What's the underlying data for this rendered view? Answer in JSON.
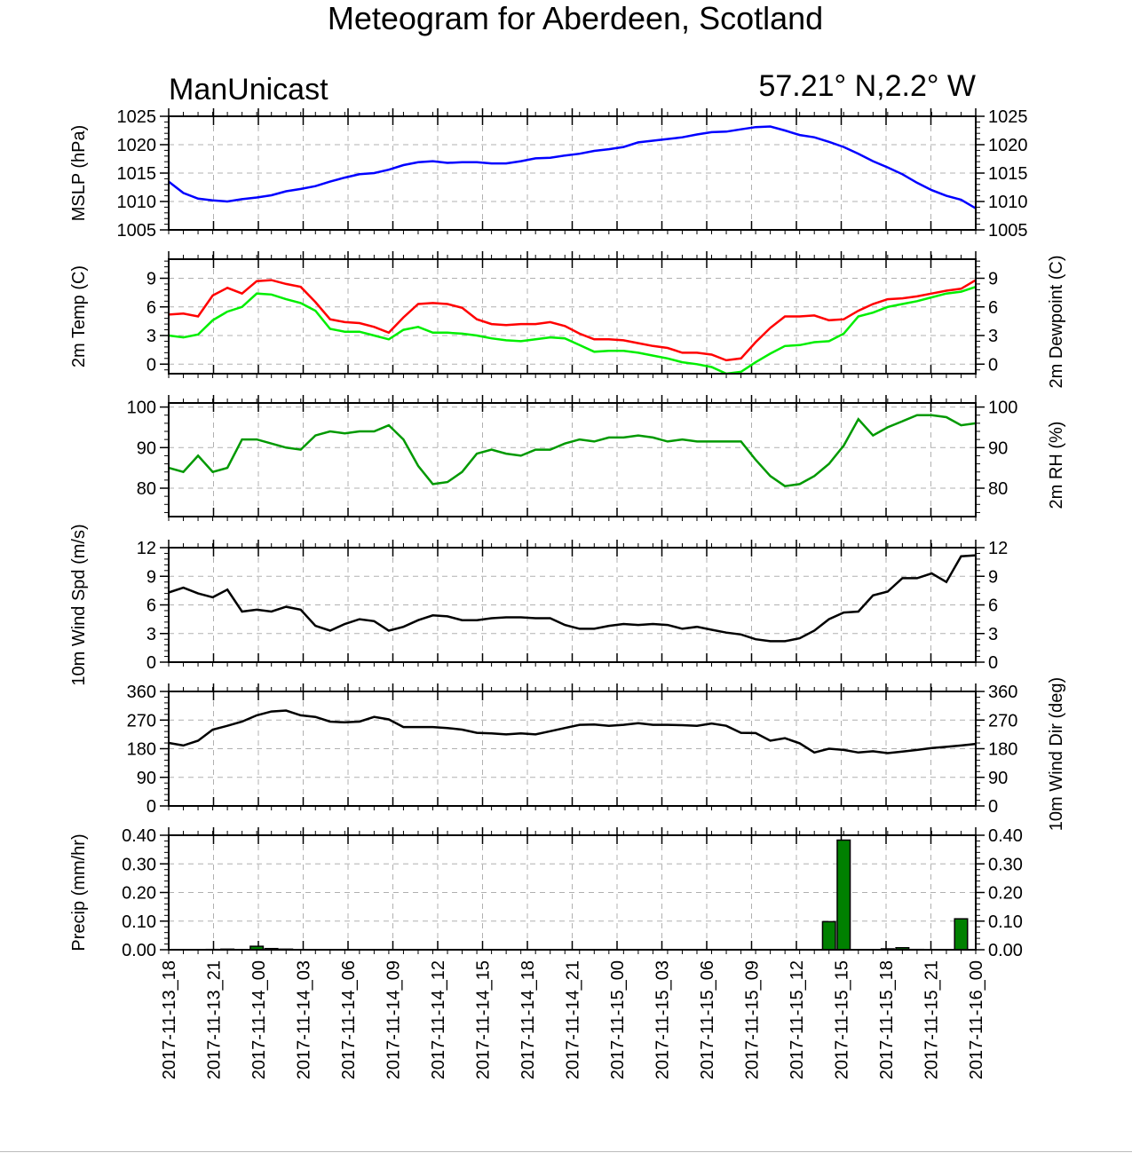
{
  "title": "Meteogram for Aberdeen, Scotland",
  "model": "ManUnicast",
  "location": "57.21° N,2.2° W",
  "x_tick_labels": [
    "2017-11-13_18",
    "2017-11-13_21",
    "2017-11-14_00",
    "2017-11-14_03",
    "2017-11-14_06",
    "2017-11-14_09",
    "2017-11-14_12",
    "2017-11-14_15",
    "2017-11-14_18",
    "2017-11-14_21",
    "2017-11-15_00",
    "2017-11-15_03",
    "2017-11-15_06",
    "2017-11-15_09",
    "2017-11-15_12",
    "2017-11-15_15",
    "2017-11-15_18",
    "2017-11-15_21",
    "2017-11-16_00"
  ],
  "colors": {
    "mslp": "#0000ff",
    "temp": "#ff0000",
    "dewpoint": "#00ee00",
    "rh": "#009900",
    "wind": "#000000",
    "precip": "#008000",
    "grid": "#b0b0b0"
  },
  "chart_data": [
    {
      "type": "line",
      "ylabel_left": "MSLP (hPa)",
      "ylim": [
        1005,
        1025
      ],
      "yticks": [
        "1025",
        "1020",
        "1015",
        "1010",
        "1005"
      ],
      "series": [
        {
          "values": [
            1013.5,
            1011.5,
            1010.5,
            1010.2,
            1010.0,
            1010.4,
            1010.7,
            1011.1,
            1011.8,
            1012.2,
            1012.7,
            1013.5,
            1014.2,
            1014.8,
            1015.0,
            1015.6,
            1016.4,
            1016.9,
            1017.1,
            1016.8,
            1016.9,
            1016.9,
            1016.7,
            1016.7,
            1017.1,
            1017.6,
            1017.7,
            1018.1,
            1018.4,
            1018.9,
            1019.2,
            1019.6,
            1020.4,
            1020.7,
            1021.0,
            1021.3,
            1021.8,
            1022.2,
            1022.3,
            1022.7,
            1023.1,
            1023.2,
            1022.5,
            1021.7,
            1021.3,
            1020.5,
            1019.6,
            1018.4,
            1017.1,
            1016.0,
            1014.8,
            1013.3,
            1012.0,
            1011.0,
            1010.3,
            1008.8
          ]
        }
      ]
    },
    {
      "type": "line",
      "ylabel_left": "2m Temp (C)",
      "ylabel_right": "2m Dewpoint (C)",
      "ylim": [
        -1,
        11
      ],
      "yticks": [
        "9",
        "6",
        "3",
        "0"
      ],
      "series": [
        {
          "values": [
            5.2,
            5.3,
            5.0,
            7.2,
            8.0,
            7.4,
            8.7,
            8.8,
            8.4,
            8.1,
            6.5,
            4.7,
            4.4,
            4.3,
            3.9,
            3.3,
            4.9,
            6.3,
            6.4,
            6.3,
            5.9,
            4.7,
            4.2,
            4.1,
            4.2,
            4.2,
            4.4,
            4.0,
            3.2,
            2.6,
            2.6,
            2.5,
            2.2,
            1.9,
            1.7,
            1.2,
            1.2,
            1.0,
            0.4,
            0.6,
            2.3,
            3.8,
            5.0,
            5.0,
            5.1,
            4.6,
            4.7,
            5.6,
            6.3,
            6.8,
            6.9,
            7.1,
            7.4,
            7.7,
            7.9,
            8.8
          ]
        },
        {
          "values": [
            3.0,
            2.8,
            3.1,
            4.6,
            5.5,
            6.0,
            7.4,
            7.3,
            6.8,
            6.4,
            5.6,
            3.7,
            3.4,
            3.4,
            3.0,
            2.6,
            3.6,
            3.9,
            3.3,
            3.3,
            3.2,
            3.0,
            2.7,
            2.5,
            2.4,
            2.6,
            2.8,
            2.7,
            2.0,
            1.3,
            1.4,
            1.4,
            1.2,
            0.9,
            0.6,
            0.2,
            0.0,
            -0.3,
            -1.0,
            -0.8,
            0.2,
            1.1,
            1.9,
            2.0,
            2.3,
            2.4,
            3.2,
            5.0,
            5.4,
            6.0,
            6.3,
            6.6,
            7.0,
            7.4,
            7.6,
            8.1
          ]
        }
      ]
    },
    {
      "type": "line",
      "ylabel_right": "2m RH (%)",
      "ylim": [
        73,
        101
      ],
      "yticks": [
        "100",
        "90",
        "80"
      ],
      "series": [
        {
          "values": [
            85,
            84,
            88,
            84,
            85,
            92,
            92,
            91,
            90,
            89.5,
            93,
            94,
            93.5,
            94,
            94,
            95.5,
            92,
            85.5,
            81,
            81.5,
            84,
            88.5,
            89.5,
            88.5,
            88,
            89.5,
            89.5,
            91,
            92,
            91.5,
            92.5,
            92.5,
            93,
            92.5,
            91.5,
            92,
            91.5,
            91.5,
            91.5,
            91.5,
            87,
            83,
            80.5,
            81,
            83,
            86,
            90.5,
            97,
            93,
            95,
            96.5,
            98,
            98,
            97.5,
            95.5,
            96
          ]
        }
      ]
    },
    {
      "type": "line",
      "ylabel_left": "10m Wind Spd (m/s)",
      "ylim": [
        0,
        12
      ],
      "yticks": [
        "12",
        "9",
        "6",
        "3",
        "0"
      ],
      "series": [
        {
          "values": [
            7.3,
            7.8,
            7.2,
            6.8,
            7.6,
            5.3,
            5.5,
            5.3,
            5.8,
            5.5,
            3.8,
            3.3,
            4.0,
            4.5,
            4.3,
            3.3,
            3.7,
            4.4,
            4.9,
            4.8,
            4.4,
            4.4,
            4.6,
            4.7,
            4.7,
            4.6,
            4.6,
            3.9,
            3.5,
            3.5,
            3.8,
            4.0,
            3.9,
            4.0,
            3.9,
            3.5,
            3.7,
            3.4,
            3.1,
            2.9,
            2.4,
            2.2,
            2.2,
            2.5,
            3.3,
            4.5,
            5.2,
            5.3,
            7.0,
            7.4,
            8.8,
            8.8,
            9.3,
            8.4,
            11.1,
            11.2
          ]
        }
      ]
    },
    {
      "type": "line",
      "ylabel_right": "10m Wind Dir (deg)",
      "ylim": [
        0,
        360
      ],
      "yticks": [
        "360",
        "270",
        "180",
        "90",
        "0"
      ],
      "series": [
        {
          "values": [
            198,
            190,
            205,
            240,
            252,
            265,
            285,
            297,
            300,
            285,
            280,
            265,
            263,
            265,
            280,
            272,
            248,
            248,
            248,
            245,
            240,
            230,
            228,
            225,
            228,
            225,
            235,
            245,
            255,
            256,
            252,
            255,
            260,
            255,
            255,
            254,
            252,
            259,
            252,
            230,
            229,
            205,
            213,
            197,
            168,
            180,
            176,
            168,
            172,
            166,
            171,
            176,
            182,
            186,
            190,
            195
          ]
        }
      ]
    },
    {
      "type": "bar",
      "ylabel_left": "Precip (mm/hr)",
      "ylim": [
        0,
        0.4
      ],
      "yticks": [
        "0.40",
        "0.30",
        "0.20",
        "0.10",
        "0.00"
      ],
      "values": [
        0,
        0,
        0,
        0.001,
        0.002,
        0,
        0.012,
        0.004,
        0.002,
        0,
        0,
        0,
        0,
        0,
        0,
        0,
        0,
        0,
        0,
        0,
        0,
        0,
        0,
        0,
        0,
        0,
        0,
        0,
        0,
        0,
        0,
        0,
        0,
        0,
        0,
        0,
        0,
        0,
        0,
        0,
        0,
        0,
        0,
        0,
        0,
        0.098,
        0.383,
        0,
        0,
        0.003,
        0.007,
        0.001,
        0,
        0,
        0.108,
        0
      ]
    }
  ]
}
